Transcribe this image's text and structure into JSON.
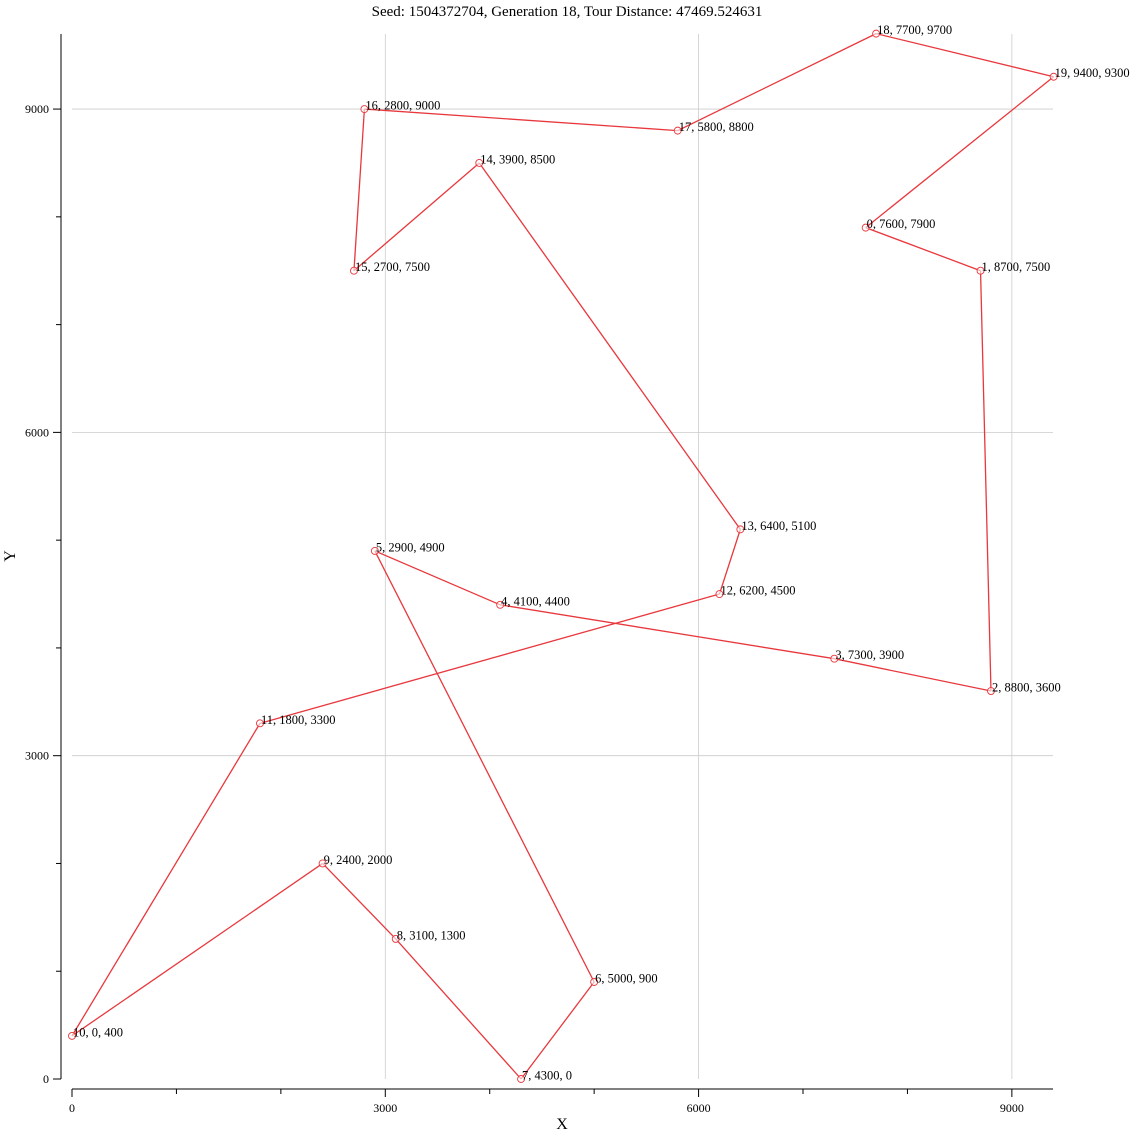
{
  "chart_data": {
    "type": "line",
    "title": "Seed: 1504372704, Generation 18, Tour Distance: 47469.524631",
    "xlabel": "X",
    "ylabel": "Y",
    "xlim": [
      0,
      9400
    ],
    "ylim": [
      0,
      9700
    ],
    "x_ticks": [
      0,
      3000,
      6000,
      9000
    ],
    "y_ticks": [
      0,
      3000,
      6000,
      9000
    ],
    "grid": true,
    "series_color": "#e8383d",
    "cities": [
      {
        "id": 0,
        "x": 7600,
        "y": 7900,
        "label": "0, 7600, 7900"
      },
      {
        "id": 1,
        "x": 8700,
        "y": 7500,
        "label": "1, 8700, 7500"
      },
      {
        "id": 2,
        "x": 8800,
        "y": 3600,
        "label": "2, 8800, 3600"
      },
      {
        "id": 3,
        "x": 7300,
        "y": 3900,
        "label": "3, 7300, 3900"
      },
      {
        "id": 4,
        "x": 4100,
        "y": 4400,
        "label": "4, 4100, 4400"
      },
      {
        "id": 5,
        "x": 2900,
        "y": 4900,
        "label": "5, 2900, 4900"
      },
      {
        "id": 6,
        "x": 5000,
        "y": 900,
        "label": "6, 5000, 900"
      },
      {
        "id": 7,
        "x": 4300,
        "y": 0,
        "label": "7, 4300, 0"
      },
      {
        "id": 8,
        "x": 3100,
        "y": 1300,
        "label": "8, 3100, 1300"
      },
      {
        "id": 9,
        "x": 2400,
        "y": 2000,
        "label": "9, 2400, 2000"
      },
      {
        "id": 10,
        "x": 0,
        "y": 400,
        "label": "10, 0, 400"
      },
      {
        "id": 11,
        "x": 1800,
        "y": 3300,
        "label": "11, 1800, 3300"
      },
      {
        "id": 12,
        "x": 6200,
        "y": 4500,
        "label": "12, 6200, 4500"
      },
      {
        "id": 13,
        "x": 6400,
        "y": 5100,
        "label": "13, 6400, 5100"
      },
      {
        "id": 14,
        "x": 3900,
        "y": 8500,
        "label": "14, 3900, 8500"
      },
      {
        "id": 15,
        "x": 2700,
        "y": 7500,
        "label": "15, 2700, 7500"
      },
      {
        "id": 16,
        "x": 2800,
        "y": 9000,
        "label": "16, 2800, 9000"
      },
      {
        "id": 17,
        "x": 5800,
        "y": 8800,
        "label": "17, 5800, 8800"
      },
      {
        "id": 18,
        "x": 7700,
        "y": 9700,
        "label": "18, 7700, 9700"
      },
      {
        "id": 19,
        "x": 9400,
        "y": 9300,
        "label": "19, 9400, 9300"
      }
    ],
    "tour": [
      0,
      1,
      2,
      3,
      4,
      5,
      6,
      7,
      8,
      9,
      10,
      11,
      12,
      13,
      14,
      15,
      16,
      17,
      18,
      19,
      0
    ]
  }
}
